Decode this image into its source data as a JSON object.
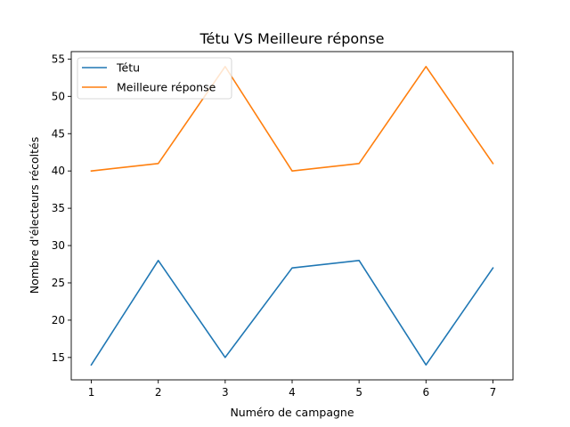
{
  "chart_data": {
    "type": "line",
    "title": "Tétu VS Meilleure réponse",
    "xlabel": "Numéro de campagne",
    "ylabel": "Nombre d'électeurs récoltés",
    "x": [
      1,
      2,
      3,
      4,
      5,
      6,
      7
    ],
    "xlim": [
      0.7,
      7.3
    ],
    "ylim": [
      12,
      56
    ],
    "xticks": [
      1,
      2,
      3,
      4,
      5,
      6,
      7
    ],
    "yticks": [
      15,
      20,
      25,
      30,
      35,
      40,
      45,
      50,
      55
    ],
    "grid": false,
    "legend_position": "top-left",
    "series": [
      {
        "name": "Tétu",
        "color": "#1f77b4",
        "values": [
          14,
          28,
          15,
          27,
          28,
          14,
          27
        ]
      },
      {
        "name": "Meilleure réponse",
        "color": "#ff7f0e",
        "values": [
          40,
          41,
          54,
          40,
          41,
          54,
          41
        ]
      }
    ]
  }
}
